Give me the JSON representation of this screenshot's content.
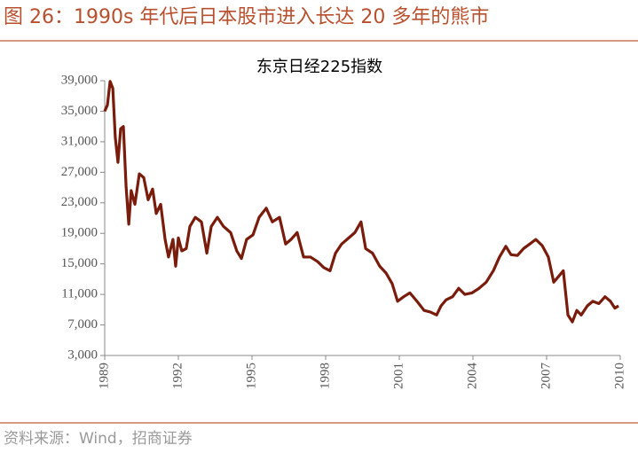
{
  "header": {
    "title": "图 26：1990s 年代后日本股市进入长达 20 多年的熊市"
  },
  "footer": {
    "source": "资料来源：Wind，招商证券"
  },
  "chart_data": {
    "type": "line",
    "title": "东京日经225指数",
    "series": [
      {
        "name": "东京日经225指数",
        "color": "#7a1c0c",
        "x": [
          1989.0,
          1989.11,
          1989.22,
          1989.33,
          1989.43,
          1989.54,
          1989.65,
          1989.76,
          1989.87,
          1989.98,
          1990.08,
          1990.23,
          1990.41,
          1990.59,
          1990.77,
          1990.95,
          1991.1,
          1991.28,
          1991.46,
          1991.6,
          1991.78,
          1991.89,
          1992.0,
          1992.14,
          1992.32,
          1992.47,
          1992.69,
          1992.94,
          1993.16,
          1993.34,
          1993.59,
          1993.84,
          1994.13,
          1994.38,
          1994.57,
          1994.78,
          1995.04,
          1995.29,
          1995.58,
          1995.83,
          1996.12,
          1996.37,
          1996.59,
          1996.84,
          1997.1,
          1997.38,
          1997.67,
          1997.93,
          1998.18,
          1998.4,
          1998.65,
          1998.94,
          1999.19,
          1999.44,
          1999.63,
          1999.91,
          2000.2,
          2000.46,
          2000.71,
          2000.93,
          2001.18,
          2001.43,
          2001.72,
          2002.01,
          2002.26,
          2002.52,
          2002.7,
          2002.91,
          2003.17,
          2003.42,
          2003.67,
          2003.96,
          2004.25,
          2004.54,
          2004.83,
          2005.08,
          2005.34,
          2005.55,
          2005.81,
          2006.06,
          2006.31,
          2006.56,
          2006.82,
          2007.07,
          2007.29,
          2007.5,
          2007.68,
          2007.87,
          2008.05,
          2008.23,
          2008.41,
          2008.66,
          2008.88,
          2009.13,
          2009.38,
          2009.6,
          2009.78,
          2009.93
        ],
        "values": [
          35000,
          35800,
          38900,
          38000,
          31600,
          28300,
          32700,
          33000,
          25200,
          20200,
          24600,
          22800,
          26800,
          26300,
          23400,
          24800,
          21600,
          22800,
          18200,
          15900,
          18200,
          14700,
          18400,
          16700,
          17000,
          19900,
          21100,
          20500,
          16400,
          19900,
          21100,
          19900,
          19100,
          16700,
          15700,
          18200,
          18800,
          21100,
          22300,
          20500,
          21100,
          17600,
          18200,
          19100,
          15900,
          15900,
          15300,
          14500,
          14100,
          16400,
          17600,
          18400,
          19100,
          20500,
          17000,
          16400,
          14700,
          13800,
          12400,
          10100,
          10700,
          11200,
          10100,
          8900,
          8700,
          8300,
          9500,
          10300,
          10700,
          11800,
          11000,
          11200,
          11800,
          12600,
          14100,
          15900,
          17300,
          16200,
          16100,
          17000,
          17600,
          18200,
          17400,
          15900,
          12600,
          13400,
          14100,
          8300,
          7400,
          8900,
          8300,
          9500,
          10100,
          9800,
          10700,
          10100,
          9200,
          9500
        ]
      }
    ],
    "xlim": [
      1989,
      2010
    ],
    "xticks": [
      1989,
      1992,
      1995,
      1998,
      2001,
      2004,
      2007,
      2010
    ],
    "ylim": [
      3000,
      39000
    ],
    "yticks": [
      {
        "value": 3000,
        "label": "3,000"
      },
      {
        "value": 7000,
        "label": "7,000"
      },
      {
        "value": 11000,
        "label": "11,000"
      },
      {
        "value": 15000,
        "label": "15,000"
      },
      {
        "value": 19000,
        "label": "19,000"
      },
      {
        "value": 23000,
        "label": "23,000"
      },
      {
        "value": 27000,
        "label": "27,000"
      },
      {
        "value": 31000,
        "label": "31,000"
      },
      {
        "value": 35000,
        "label": "35,000"
      },
      {
        "value": 39000,
        "label": "39,000"
      }
    ],
    "grid": false
  }
}
